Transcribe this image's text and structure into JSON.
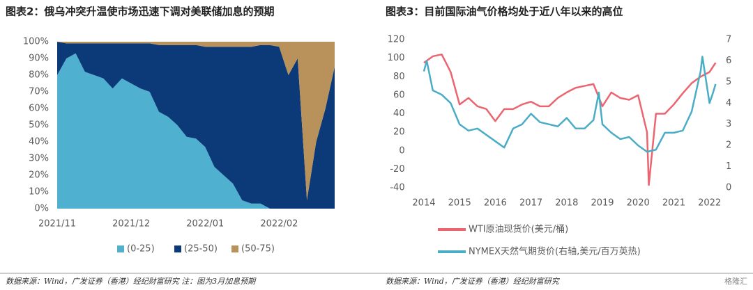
{
  "chart_data": [
    {
      "type": "area",
      "stacked": true,
      "title": "图表2：俄乌冲突升温使市场迅速下调对美联储加息的预期",
      "categories": [
        "2021/11",
        null,
        null,
        null,
        null,
        null,
        null,
        null,
        "2021/12",
        null,
        null,
        null,
        null,
        null,
        null,
        null,
        "2022/01",
        null,
        null,
        null,
        null,
        null,
        null,
        null,
        "2022/02",
        null,
        null,
        null,
        null,
        null,
        null
      ],
      "series": [
        {
          "name": "(0-25)",
          "color": "#4fb0cf",
          "values": [
            80,
            90,
            93,
            82,
            80,
            78,
            72,
            78,
            75,
            72,
            70,
            58,
            55,
            50,
            43,
            42,
            37,
            25,
            20,
            15,
            5,
            3,
            3,
            0,
            0,
            0,
            0,
            0,
            0,
            0,
            0
          ]
        },
        {
          "name": "(25-50)",
          "color": "#0c3a78",
          "values": [
            20,
            9,
            6,
            17,
            19,
            21,
            27,
            21,
            24,
            27,
            29,
            40,
            43,
            48,
            55,
            56,
            60,
            72,
            77,
            82,
            92,
            94,
            95,
            98,
            97,
            80,
            90,
            5,
            40,
            60,
            85
          ]
        },
        {
          "name": "(50-75)",
          "color": "#b8925a",
          "values": [
            0,
            1,
            1,
            1,
            1,
            1,
            1,
            1,
            1,
            1,
            1,
            2,
            2,
            2,
            2,
            2,
            3,
            3,
            3,
            3,
            3,
            3,
            2,
            2,
            3,
            20,
            10,
            95,
            60,
            40,
            15
          ]
        }
      ],
      "ylim": [
        0,
        100
      ],
      "yticks": [
        {
          "value": 0,
          "label": "0%"
        },
        {
          "value": 10,
          "label": "10%"
        },
        {
          "value": 20,
          "label": "20%"
        },
        {
          "value": 30,
          "label": "30%"
        },
        {
          "value": 40,
          "label": "40%"
        },
        {
          "value": 50,
          "label": "50%"
        },
        {
          "value": 60,
          "label": "60%"
        },
        {
          "value": 70,
          "label": "70%"
        },
        {
          "value": 80,
          "label": "80%"
        },
        {
          "value": 90,
          "label": "90%"
        },
        {
          "value": 100,
          "label": "100%"
        }
      ],
      "grid": false,
      "legend": "bottom",
      "source": "数据来源：Wind，广发证券（香港）经纪财富研究  注：图为3月加息预期"
    },
    {
      "type": "line",
      "title": "图表3：目前国际油气价格均处于近八年以来的高位",
      "series": [
        {
          "name": "WTI原油现货价(美元/桶)",
          "color": "#ec6470",
          "x": [
            2014.0,
            2014.25,
            2014.5,
            2014.75,
            2015.0,
            2015.25,
            2015.5,
            2015.75,
            2016.0,
            2016.25,
            2016.5,
            2016.75,
            2017.0,
            2017.25,
            2017.5,
            2017.75,
            2018.0,
            2018.25,
            2018.5,
            2018.75,
            2019.0,
            2019.25,
            2019.5,
            2019.75,
            2020.0,
            2020.25,
            2020.3,
            2020.5,
            2020.75,
            2021.0,
            2021.25,
            2021.5,
            2021.75,
            2022.0,
            2022.17
          ],
          "values": [
            95,
            102,
            104,
            85,
            50,
            57,
            48,
            45,
            32,
            45,
            45,
            50,
            53,
            48,
            48,
            57,
            63,
            68,
            70,
            72,
            48,
            63,
            57,
            55,
            60,
            20,
            -37,
            40,
            40,
            50,
            62,
            73,
            80,
            85,
            95
          ]
        },
        {
          "name": "NYMEX天然气期货价(右轴,美元/百万英热)",
          "color": "#4bacc6",
          "axis": "y2",
          "x": [
            2014.0,
            2014.08,
            2014.25,
            2014.5,
            2014.75,
            2015.0,
            2015.25,
            2015.5,
            2015.75,
            2016.0,
            2016.25,
            2016.5,
            2016.75,
            2017.0,
            2017.25,
            2017.5,
            2017.75,
            2018.0,
            2018.25,
            2018.5,
            2018.75,
            2018.9,
            2019.0,
            2019.25,
            2019.5,
            2019.75,
            2020.0,
            2020.25,
            2020.5,
            2020.75,
            2021.0,
            2021.25,
            2021.5,
            2021.75,
            2021.8,
            2022.0,
            2022.1,
            2022.17
          ],
          "values": [
            5.5,
            6.0,
            4.6,
            4.4,
            4.0,
            3.0,
            2.7,
            2.8,
            2.5,
            2.2,
            1.9,
            2.8,
            3.0,
            3.5,
            3.1,
            3.0,
            2.9,
            3.3,
            2.8,
            2.8,
            3.2,
            4.5,
            3.0,
            2.6,
            2.3,
            2.4,
            2.0,
            1.7,
            1.8,
            2.6,
            2.6,
            2.7,
            3.6,
            5.5,
            6.2,
            4.0,
            4.5,
            4.9
          ]
        }
      ],
      "xlim": [
        2013.7,
        2022.3
      ],
      "xticks": [
        2014,
        2015,
        2016,
        2017,
        2018,
        2019,
        2020,
        2021,
        2022
      ],
      "ylim": [
        -40,
        120
      ],
      "yticks": [
        -40,
        -20,
        0,
        20,
        40,
        60,
        80,
        100,
        120
      ],
      "y2lim": [
        0,
        7
      ],
      "y2ticks": [
        0,
        1,
        2,
        3,
        4,
        5,
        6,
        7
      ],
      "grid": false,
      "legend": "bottom",
      "source": "数据来源：Wind，广发证券（香港）经纪财富研究"
    }
  ],
  "watermark": "格隆汇"
}
